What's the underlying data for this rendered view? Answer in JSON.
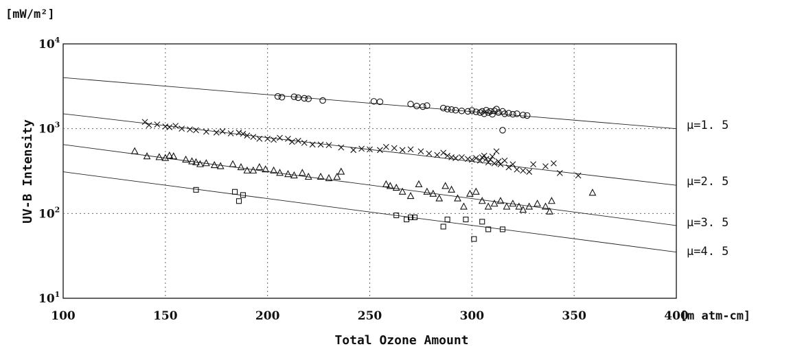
{
  "unit_label": "[mW/m²]",
  "chart_data": {
    "type": "scatter",
    "title": "",
    "xlabel": "Total Ozone Amount",
    "xunit": "[m atm-cm]",
    "ylabel": "UV-B Intensity",
    "yunit": "[mW/m²]",
    "xlim": [
      100,
      400
    ],
    "ylim": [
      10,
      10000
    ],
    "yscale": "log",
    "grid": true,
    "x_ticks": [
      "100",
      "150",
      "200",
      "250",
      "300",
      "350",
      "400"
    ],
    "y_ticks": [
      {
        "base": "10",
        "exp": "1"
      },
      {
        "base": "10",
        "exp": "2"
      },
      {
        "base": "10",
        "exp": "3"
      },
      {
        "base": "10",
        "exp": "4"
      }
    ],
    "fit_lines": [
      {
        "label": "μ=1. 5",
        "x": [
          100,
          400
        ],
        "y": [
          4000,
          1000
        ]
      },
      {
        "label": "μ=2. 5",
        "x": [
          100,
          400
        ],
        "y": [
          1500,
          215
        ]
      },
      {
        "label": "μ=3. 5",
        "x": [
          100,
          400
        ],
        "y": [
          650,
          72
        ]
      },
      {
        "label": "μ=4. 5",
        "x": [
          100,
          400
        ],
        "y": [
          310,
          35
        ]
      }
    ],
    "series": [
      {
        "marker": "circle",
        "x": [
          205,
          207,
          213,
          215,
          218,
          220,
          227,
          252,
          255,
          270,
          273,
          276,
          278,
          286,
          288,
          290,
          292,
          295,
          298,
          300,
          302,
          304,
          305,
          306,
          307,
          308,
          309,
          310,
          311,
          312,
          313,
          315,
          316,
          318,
          320,
          322,
          325,
          327,
          315
        ],
        "y": [
          2400,
          2350,
          2380,
          2320,
          2280,
          2250,
          2150,
          2100,
          2080,
          1950,
          1850,
          1820,
          1870,
          1750,
          1700,
          1680,
          1650,
          1620,
          1600,
          1640,
          1580,
          1550,
          1600,
          1500,
          1650,
          1550,
          1600,
          1480,
          1620,
          1700,
          1550,
          1600,
          1500,
          1520,
          1480,
          1500,
          1450,
          1430,
          960
        ]
      },
      {
        "marker": "x",
        "x": [
          140,
          142,
          146,
          150,
          152,
          155,
          158,
          162,
          165,
          170,
          175,
          178,
          182,
          186,
          188,
          190,
          193,
          196,
          200,
          203,
          206,
          210,
          212,
          215,
          218,
          222,
          226,
          230,
          236,
          242,
          246,
          250,
          255,
          258,
          262,
          266,
          270,
          275,
          279,
          283,
          286,
          288,
          290,
          292,
          295,
          298,
          300,
          302,
          304,
          305,
          306,
          307,
          308,
          309,
          310,
          311,
          312,
          313,
          314,
          316,
          318,
          320,
          322,
          325,
          328,
          330,
          336,
          340,
          343,
          352
        ],
        "y": [
          1200,
          1100,
          1120,
          1060,
          1040,
          1080,
          1000,
          980,
          960,
          920,
          900,
          930,
          880,
          900,
          870,
          830,
          800,
          760,
          760,
          740,
          780,
          760,
          700,
          720,
          680,
          650,
          650,
          640,
          600,
          560,
          580,
          570,
          560,
          610,
          590,
          560,
          570,
          540,
          510,
          490,
          520,
          480,
          460,
          450,
          460,
          440,
          430,
          450,
          420,
          460,
          480,
          440,
          400,
          430,
          470,
          390,
          540,
          410,
          380,
          420,
          350,
          380,
          330,
          320,
          310,
          380,
          360,
          390,
          300,
          280
        ]
      },
      {
        "marker": "triangle",
        "x": [
          135,
          141,
          147,
          150,
          152,
          154,
          160,
          163,
          165,
          167,
          170,
          174,
          177,
          183,
          187,
          190,
          193,
          196,
          199,
          203,
          206,
          210,
          213,
          217,
          220,
          226,
          230,
          234,
          236,
          258,
          260,
          263,
          266,
          270,
          274,
          278,
          281,
          284,
          287,
          290,
          293,
          296,
          299,
          302,
          305,
          308,
          311,
          314,
          317,
          320,
          323,
          325,
          328,
          332,
          336,
          338,
          339,
          359
        ],
        "y": [
          540,
          470,
          460,
          450,
          480,
          470,
          430,
          410,
          400,
          380,
          390,
          370,
          360,
          380,
          350,
          320,
          320,
          350,
          330,
          320,
          300,
          290,
          280,
          300,
          270,
          270,
          260,
          270,
          310,
          220,
          210,
          200,
          180,
          160,
          220,
          180,
          170,
          150,
          210,
          190,
          150,
          120,
          170,
          180,
          140,
          120,
          130,
          140,
          120,
          130,
          120,
          110,
          120,
          130,
          120,
          105,
          140,
          175
        ]
      },
      {
        "marker": "square",
        "x": [
          165,
          184,
          186,
          188,
          263,
          268,
          270,
          272,
          286,
          288,
          297,
          301,
          305,
          308,
          315
        ],
        "y": [
          190,
          180,
          140,
          165,
          95,
          85,
          90,
          90,
          70,
          85,
          85,
          50,
          80,
          65,
          65
        ]
      }
    ]
  }
}
